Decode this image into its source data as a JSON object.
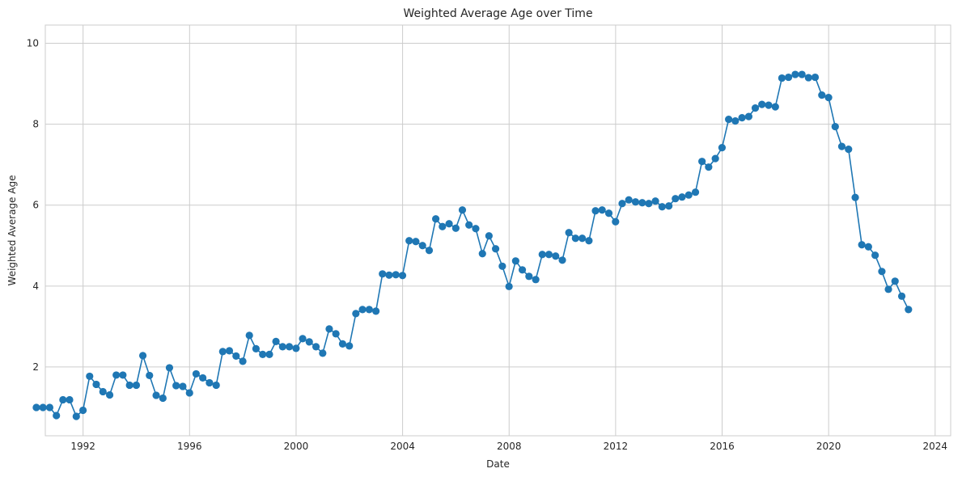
{
  "chart_data": {
    "type": "line",
    "title": "Weighted Average Age over Time",
    "xlabel": "Date",
    "ylabel": "Weighted Average Age",
    "xlim": [
      "1990-08-01",
      "2024-08-01"
    ],
    "ylim": [
      0.3,
      10.45
    ],
    "xticks": [
      {
        "label": "1992",
        "date": "1992-01-01"
      },
      {
        "label": "1996",
        "date": "1996-01-01"
      },
      {
        "label": "2000",
        "date": "2000-01-01"
      },
      {
        "label": "2004",
        "date": "2004-01-01"
      },
      {
        "label": "2008",
        "date": "2008-01-01"
      },
      {
        "label": "2012",
        "date": "2012-01-01"
      },
      {
        "label": "2016",
        "date": "2016-01-01"
      },
      {
        "label": "2020",
        "date": "2020-01-01"
      },
      {
        "label": "2024",
        "date": "2024-01-01"
      }
    ],
    "yticks": [
      {
        "label": "2",
        "value": 2
      },
      {
        "label": "4",
        "value": 4
      },
      {
        "label": "6",
        "value": 6
      },
      {
        "label": "8",
        "value": 8
      },
      {
        "label": "10",
        "value": 10
      }
    ],
    "grid": true,
    "color": "#1f77b4",
    "marker": "circle",
    "series": [
      {
        "x": [
          "1990-03-31",
          "1990-06-30",
          "1990-09-30",
          "1990-12-31",
          "1991-03-31",
          "1991-06-30",
          "1991-09-30",
          "1991-12-31",
          "1992-03-31",
          "1992-06-30",
          "1992-09-30",
          "1992-12-31",
          "1993-03-31",
          "1993-06-30",
          "1993-09-30",
          "1993-12-31",
          "1994-03-31",
          "1994-06-30",
          "1994-09-30",
          "1994-12-31",
          "1995-03-31",
          "1995-06-30",
          "1995-09-30",
          "1995-12-31",
          "1996-03-31",
          "1996-06-30",
          "1996-09-30",
          "1996-12-31",
          "1997-03-31",
          "1997-06-30",
          "1997-09-30",
          "1997-12-31",
          "1998-03-31",
          "1998-06-30",
          "1998-09-30",
          "1998-12-31",
          "1999-03-31",
          "1999-06-30",
          "1999-09-30",
          "1999-12-31",
          "2000-03-31",
          "2000-06-30",
          "2000-09-30",
          "2000-12-31",
          "2001-03-31",
          "2001-06-30",
          "2001-09-30",
          "2001-12-31",
          "2002-03-31",
          "2002-06-30",
          "2002-09-30",
          "2002-12-31",
          "2003-03-31",
          "2003-06-30",
          "2003-09-30",
          "2003-12-31",
          "2004-03-31",
          "2004-06-30",
          "2004-09-30",
          "2004-12-31",
          "2005-03-31",
          "2005-06-30",
          "2005-09-30",
          "2005-12-31",
          "2006-03-31",
          "2006-06-30",
          "2006-09-30",
          "2006-12-31",
          "2007-03-31",
          "2007-06-30",
          "2007-09-30",
          "2007-12-31",
          "2008-03-31",
          "2008-06-30",
          "2008-09-30",
          "2008-12-31",
          "2009-03-31",
          "2009-06-30",
          "2009-09-30",
          "2009-12-31",
          "2010-03-31",
          "2010-06-30",
          "2010-09-30",
          "2010-12-31",
          "2011-03-31",
          "2011-06-30",
          "2011-09-30",
          "2011-12-31",
          "2012-03-31",
          "2012-06-30",
          "2012-09-30",
          "2012-12-31",
          "2013-03-31",
          "2013-06-30",
          "2013-09-30",
          "2013-12-31",
          "2014-03-31",
          "2014-06-30",
          "2014-09-30",
          "2014-12-31",
          "2015-03-31",
          "2015-06-30",
          "2015-09-30",
          "2015-12-31",
          "2016-03-31",
          "2016-06-30",
          "2016-09-30",
          "2016-12-31",
          "2017-03-31",
          "2017-06-30",
          "2017-09-30",
          "2017-12-31",
          "2018-03-31",
          "2018-06-30",
          "2018-09-30",
          "2018-12-31",
          "2019-03-31",
          "2019-06-30",
          "2019-09-30",
          "2019-12-31",
          "2020-03-31",
          "2020-06-30",
          "2020-09-30",
          "2020-12-31",
          "2021-03-31",
          "2021-06-30",
          "2021-09-30",
          "2021-12-31",
          "2022-03-31",
          "2022-06-30",
          "2022-09-30",
          "2022-12-31"
        ],
        "y": [
          1.0,
          1.0,
          1.0,
          0.8,
          1.19,
          1.19,
          0.78,
          0.93,
          1.77,
          1.57,
          1.39,
          1.31,
          1.8,
          1.8,
          1.55,
          1.55,
          2.28,
          1.79,
          1.3,
          1.23,
          1.98,
          1.54,
          1.52,
          1.36,
          1.83,
          1.73,
          1.61,
          1.55,
          2.38,
          2.4,
          2.27,
          2.14,
          2.78,
          2.45,
          2.31,
          2.31,
          2.63,
          2.5,
          2.5,
          2.46,
          2.7,
          2.62,
          2.5,
          2.34,
          2.94,
          2.82,
          2.57,
          2.52,
          3.32,
          3.42,
          3.42,
          3.38,
          4.3,
          4.27,
          4.28,
          4.26,
          5.12,
          5.1,
          5.0,
          4.88,
          5.66,
          5.47,
          5.54,
          5.43,
          5.88,
          5.51,
          5.42,
          4.8,
          5.24,
          4.92,
          4.49,
          3.99,
          4.62,
          4.4,
          4.24,
          4.16,
          4.78,
          4.78,
          4.74,
          4.64,
          5.32,
          5.18,
          5.18,
          5.12,
          5.86,
          5.88,
          5.8,
          5.59,
          6.04,
          6.13,
          6.08,
          6.06,
          6.04,
          6.1,
          5.96,
          5.98,
          6.16,
          6.2,
          6.25,
          6.32,
          7.08,
          6.94,
          7.15,
          7.42,
          8.12,
          8.08,
          8.16,
          8.19,
          8.4,
          8.49,
          8.47,
          8.43,
          9.14,
          9.16,
          9.23,
          9.23,
          9.15,
          9.16,
          8.72,
          8.66,
          7.94,
          7.45,
          7.38,
          6.19,
          5.02,
          4.97,
          4.76,
          4.36,
          3.92,
          4.12,
          3.75,
          3.42
        ]
      }
    ]
  }
}
